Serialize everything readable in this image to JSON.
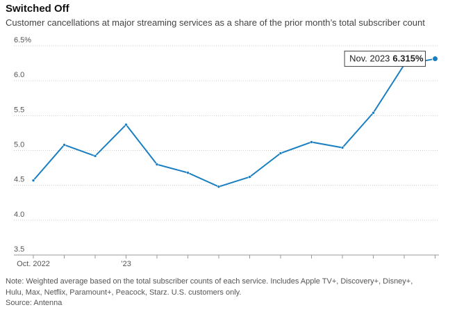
{
  "chart_data": {
    "type": "line",
    "title": "Switched Off",
    "subtitle": "Customer cancellations at major streaming services as a share of the prior month’s total subscriber count",
    "categories": [
      "Oct. 2022",
      null,
      null,
      "’23",
      null,
      null,
      null,
      null,
      null,
      null,
      null,
      null,
      null,
      null
    ],
    "series": [
      {
        "name": "Cancellation rate",
        "color": "#1a7fc1",
        "values": [
          4.57,
          5.08,
          4.92,
          5.37,
          4.8,
          4.68,
          4.48,
          4.62,
          4.96,
          5.12,
          5.04,
          5.54,
          6.23,
          6.315
        ],
        "value_labels": [
          null,
          null,
          null,
          null,
          null,
          null,
          null,
          null,
          null,
          null,
          null,
          null,
          null,
          "6.315%"
        ]
      }
    ],
    "annotation": "Nov. 2023",
    "ylim": [
      3.5,
      6.5
    ],
    "yticks": [
      {
        "value": 3.5,
        "label": "3.5"
      },
      {
        "value": 4,
        "label": "4.0"
      },
      4.5,
      {
        "value": 5,
        "label": "5.0"
      },
      5.5,
      {
        "value": 6,
        "label": "6.0"
      },
      {
        "value": 6.5,
        "label": "6.5%"
      }
    ],
    "grid": true,
    "note": "Note: Weighted average based on the total subscriber counts of each service. Includes Apple TV+, Discovery+, Disney+, Hulu, Max, Netflix, Paramount+, Peacock, Starz. U.S. customers only.",
    "source": "Source: Antenna"
  }
}
